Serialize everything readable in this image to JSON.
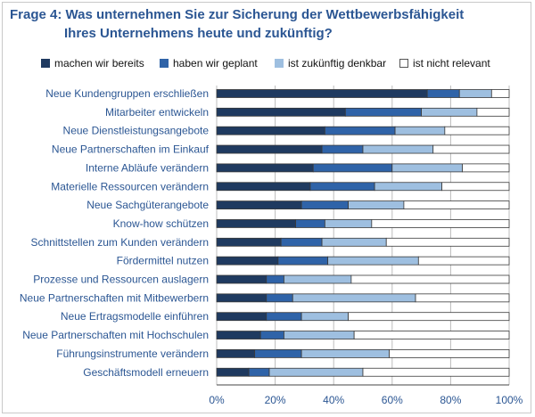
{
  "chart_data": {
    "type": "bar",
    "orientation": "horizontal",
    "stacked": true,
    "title_line_1": "Frage 4: Was unternehmen Sie zur Sicherung der Wettbewerbsfähigkeit",
    "title_line_2": "Ihres Unternehmens heute und zukünftig?",
    "xlim": [
      0,
      100
    ],
    "x_ticks": [
      "0%",
      "20%",
      "40%",
      "60%",
      "80%",
      "100%"
    ],
    "grid": true,
    "legend_position": "top",
    "categories": [
      "Neue Kundengruppen erschließen",
      "Mitarbeiter entwickeln",
      "Neue Dienstleistungsangebote",
      "Neue Partnerschaften im Einkauf",
      "Interne Abläufe verändern",
      "Materielle Ressourcen verändern",
      "Neue Sachgüterangebote",
      "Know-how schützen",
      "Schnittstellen zum Kunden verändern",
      "Fördermittel nutzen",
      "Prozesse und Ressourcen auslagern",
      "Neue Partnerschaften mit Mitbewerbern",
      "Neue Ertragsmodelle einführen",
      "Neue Partnerschaften mit Hochschulen",
      "Führungsinstrumente verändern",
      "Geschäftsmodell erneuern"
    ],
    "series": [
      {
        "name": "machen wir bereits",
        "color": "#1f3a60",
        "values": [
          72,
          44,
          37,
          36,
          33,
          32,
          29,
          27,
          22,
          21,
          17,
          17,
          17,
          15,
          13,
          11
        ]
      },
      {
        "name": "haben wir geplant",
        "color": "#2f63a8",
        "values": [
          11,
          26,
          24,
          14,
          27,
          22,
          16,
          10,
          14,
          17,
          6,
          9,
          12,
          8,
          16,
          7
        ]
      },
      {
        "name": "ist zukünftig denkbar",
        "color": "#9ebfe0",
        "values": [
          11,
          19,
          17,
          24,
          24,
          23,
          19,
          16,
          22,
          31,
          23,
          42,
          16,
          24,
          30,
          32
        ]
      },
      {
        "name": "ist nicht relevant",
        "color": "#ffffff",
        "values": [
          6,
          11,
          22,
          26,
          16,
          23,
          36,
          47,
          42,
          31,
          54,
          32,
          55,
          53,
          41,
          50
        ]
      }
    ]
  }
}
